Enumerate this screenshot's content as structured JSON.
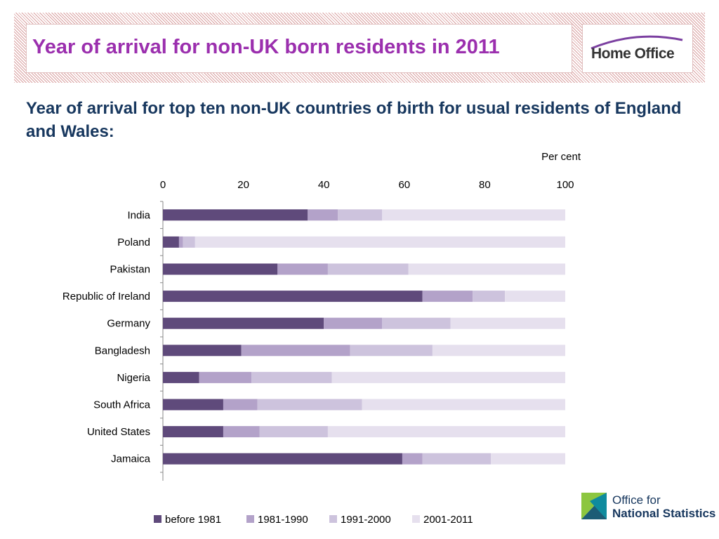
{
  "header": {
    "title": "Year of arrival for non-UK born residents in 2011",
    "logo": "Home Office"
  },
  "subtitle": "Year of arrival for top ten non-UK countries of birth for usual residents of England and Wales:",
  "footer_logo": {
    "line1": "Office for",
    "line2": "National Statistics"
  },
  "colors": {
    "title": "#9b2fae",
    "subtitle": "#17375e",
    "series": [
      "#5f4a7b",
      "#b3a2c9",
      "#cdc3dd",
      "#e6e0ee"
    ]
  },
  "chart_data": {
    "type": "bar",
    "orientation": "horizontal",
    "stacked": true,
    "unit_label": "Per cent",
    "xlim": [
      0,
      100
    ],
    "x_ticks": [
      0,
      20,
      40,
      60,
      80,
      100
    ],
    "grid": false,
    "legend_position": "bottom",
    "categories": [
      "India",
      "Poland",
      "Pakistan",
      "Republic of Ireland",
      "Germany",
      "Bangladesh",
      "Nigeria",
      "South Africa",
      "United States",
      "Jamaica"
    ],
    "series": [
      {
        "name": "before 1981",
        "values": [
          36,
          4,
          28.5,
          64.5,
          40,
          19.5,
          9,
          15,
          15,
          59.5
        ]
      },
      {
        "name": "1981-1990",
        "values": [
          7.5,
          1,
          12.5,
          12.5,
          14.5,
          27,
          13,
          8.5,
          9,
          5
        ]
      },
      {
        "name": "1991-2000",
        "values": [
          11,
          3,
          20,
          8,
          17,
          20.5,
          20,
          26,
          17,
          17
        ]
      },
      {
        "name": "2001-2011",
        "values": [
          45.5,
          92,
          39,
          15,
          28.5,
          33,
          58,
          50.5,
          59,
          18.5
        ]
      }
    ]
  }
}
